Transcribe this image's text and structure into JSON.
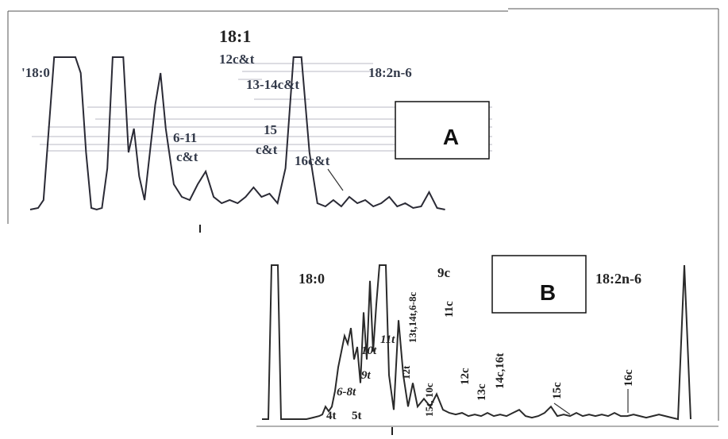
{
  "chart_data": [
    {
      "panel": "A",
      "type": "line",
      "panel_label": "A",
      "title": "18:1",
      "peak_labels": [
        "'18:0",
        "12c&t",
        "13-14c&t",
        "6-11",
        "c&t",
        "15",
        "c&t",
        "16c&t",
        "18:2n-6"
      ],
      "x": [
        0,
        6,
        10,
        14,
        18,
        22,
        28,
        34,
        38,
        42,
        46,
        50,
        54,
        58,
        62,
        66,
        70,
        74,
        78,
        82,
        86,
        90,
        94,
        98,
        102,
        108,
        114,
        120,
        126,
        132,
        138,
        144,
        150,
        156,
        162,
        168,
        174,
        180,
        186,
        192,
        198,
        204,
        210,
        216,
        222,
        228,
        234,
        240,
        246,
        252,
        258,
        264,
        270,
        276,
        282,
        288,
        294,
        300,
        306,
        312
      ],
      "y": [
        0.04,
        0.05,
        0.1,
        0.55,
        1.0,
        1.0,
        1.0,
        1.0,
        0.9,
        0.4,
        0.05,
        0.04,
        0.05,
        0.3,
        1.0,
        1.0,
        1.0,
        0.4,
        0.55,
        0.25,
        0.1,
        0.4,
        0.7,
        0.9,
        0.55,
        0.2,
        0.12,
        0.1,
        0.2,
        0.28,
        0.12,
        0.08,
        0.1,
        0.08,
        0.12,
        0.18,
        0.12,
        0.14,
        0.08,
        0.3,
        1.0,
        1.0,
        0.4,
        0.08,
        0.06,
        0.1,
        0.06,
        0.12,
        0.08,
        0.1,
        0.06,
        0.08,
        0.12,
        0.06,
        0.08,
        0.05,
        0.06,
        0.15,
        0.05,
        0.04
      ]
    },
    {
      "panel": "B",
      "type": "line",
      "panel_label": "B",
      "peak_labels": [
        "18:0",
        "9c",
        "18:2n-6",
        "11t",
        "10t",
        "9t",
        "6-8t",
        "4t",
        "5t",
        "13t,14t,6-8c",
        "12t",
        "15t, 10c",
        "11c",
        "12c",
        "13c",
        "14c,16t",
        "15c",
        "16c"
      ],
      "x": [
        0,
        4,
        8,
        12,
        16,
        20,
        24,
        28,
        32,
        40,
        48,
        56,
        64,
        72,
        76,
        80,
        84,
        88,
        92,
        96,
        100,
        104,
        108,
        112,
        116,
        120,
        124,
        128,
        132,
        136,
        140,
        144,
        148,
        152,
        156,
        160,
        166,
        172,
        178,
        184,
        190,
        196,
        204,
        212,
        220,
        228,
        236,
        244,
        252,
        260,
        268,
        276,
        284,
        292,
        300,
        308,
        316,
        324,
        332,
        340,
        348,
        356,
        364,
        372,
        380,
        388,
        396,
        404,
        412,
        420,
        428,
        436,
        444,
        452,
        460,
        468,
        476,
        484,
        492,
        500,
        508,
        516,
        524,
        532,
        540
      ],
      "y": [
        0.02,
        0.02,
        0.02,
        1.0,
        1.0,
        1.0,
        0.02,
        0.02,
        0.02,
        0.02,
        0.02,
        0.02,
        0.03,
        0.04,
        0.05,
        0.1,
        0.07,
        0.1,
        0.2,
        0.35,
        0.45,
        0.55,
        0.5,
        0.6,
        0.4,
        0.48,
        0.25,
        0.7,
        0.4,
        0.9,
        0.45,
        0.75,
        1.0,
        1.0,
        1.0,
        0.3,
        0.08,
        0.65,
        0.3,
        0.1,
        0.25,
        0.1,
        0.15,
        0.1,
        0.18,
        0.08,
        0.06,
        0.05,
        0.06,
        0.04,
        0.05,
        0.04,
        0.06,
        0.04,
        0.05,
        0.04,
        0.06,
        0.08,
        0.04,
        0.03,
        0.04,
        0.06,
        0.1,
        0.04,
        0.05,
        0.04,
        0.06,
        0.04,
        0.05,
        0.04,
        0.05,
        0.04,
        0.06,
        0.04,
        0.04,
        0.05,
        0.04,
        0.03,
        0.04,
        0.05,
        0.04,
        0.03,
        0.02,
        1.0,
        0.02
      ]
    }
  ]
}
